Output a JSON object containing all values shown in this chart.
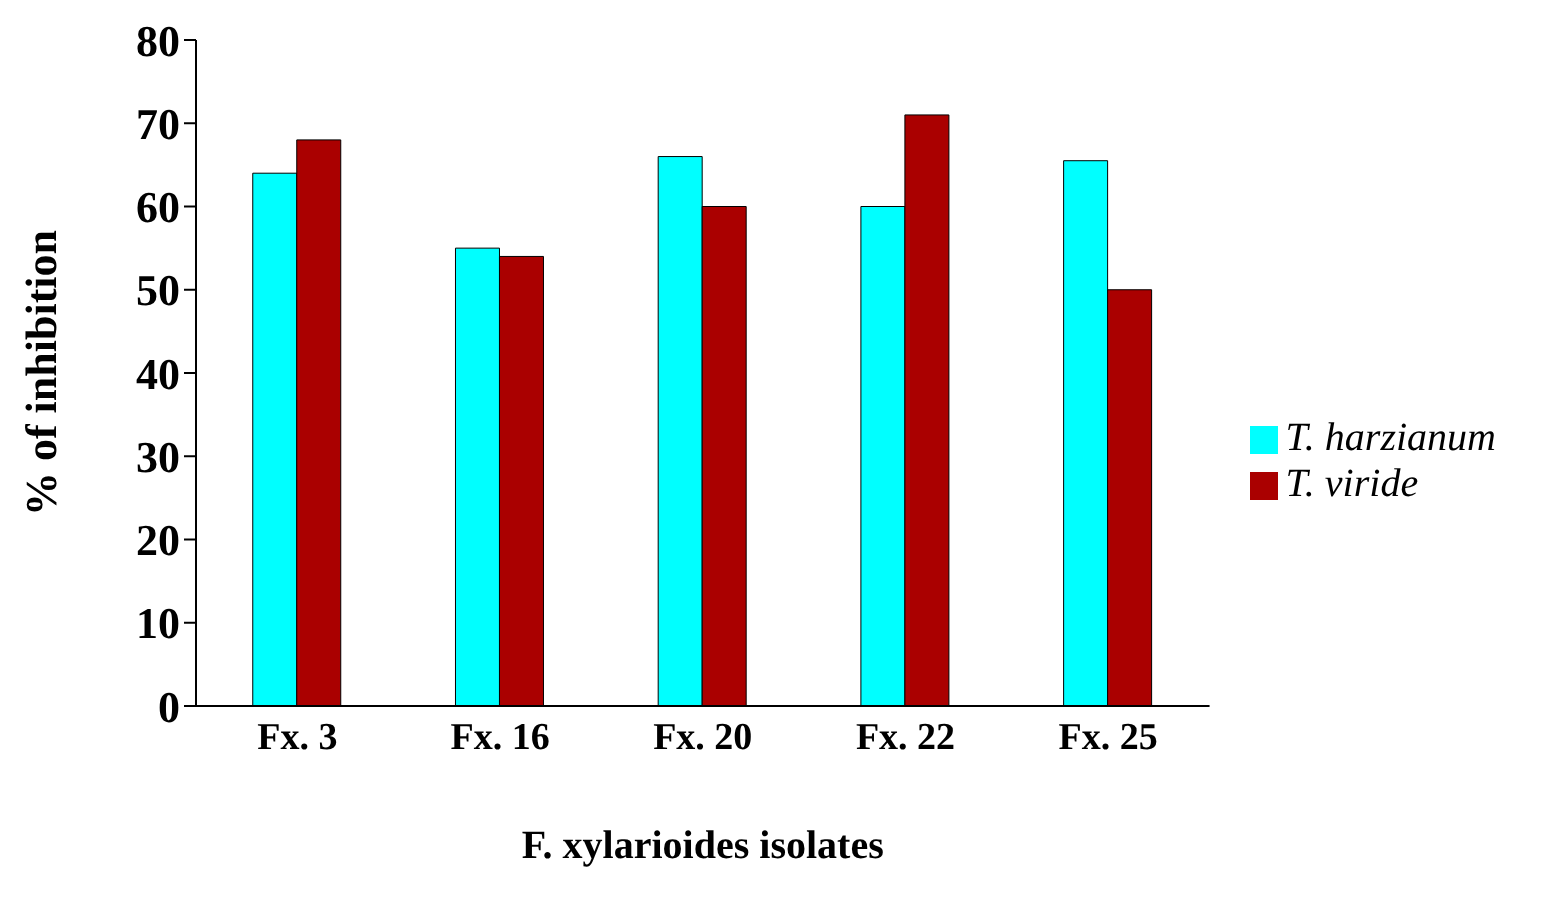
{
  "chart_data": {
    "type": "bar",
    "xlabel": "F. xylarioides isolates",
    "ylabel": "% of inhibition",
    "categories": [
      "Fx. 3",
      "Fx. 16",
      "Fx. 20",
      "Fx. 22",
      "Fx. 25"
    ],
    "series": [
      {
        "name": "T. harzianum",
        "color": "#00ffff",
        "values": [
          64,
          55,
          66,
          60,
          65.5
        ]
      },
      {
        "name": "T. viride",
        "color": "#aa0000",
        "values": [
          68,
          54,
          60,
          71,
          50
        ]
      }
    ],
    "ylim": [
      0,
      80
    ],
    "yticks": [
      0,
      10,
      20,
      30,
      40,
      50,
      60,
      70,
      80
    ],
    "grid": false,
    "legend": "right"
  }
}
